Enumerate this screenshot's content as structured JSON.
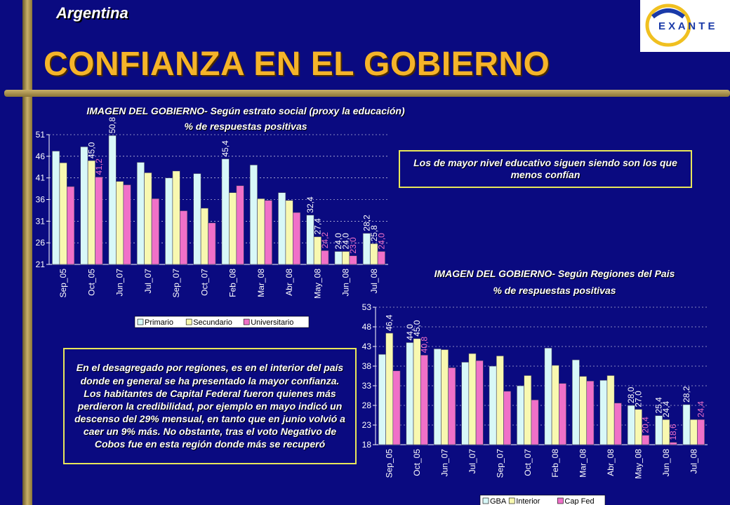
{
  "header": {
    "country": "Argentina",
    "title": "CONFIANZA EN EL GOBIERNO",
    "logo_text": "E X A N T E"
  },
  "colors": {
    "background": "#0a0a80",
    "title": "#f5b42a",
    "note_border": "#e8e65a",
    "series_1": "#d8f8f8",
    "series_2": "#f8f8b0",
    "series_3": "#f070c8"
  },
  "chart_data": [
    {
      "type": "bar",
      "title": "IMAGEN DEL GOBIERNO- Según estrato social (proxy la educación)",
      "subtitle": "% de respuestas positivas",
      "categories": [
        "Sep_05",
        "Oct_05",
        "Jun_07",
        "Jul_07",
        "Sep_07",
        "Oct_07",
        "Feb_08",
        "Mar_08",
        "Abr_08",
        "May_08",
        "Jun_08",
        "Jul_08"
      ],
      "series": [
        {
          "name": "Primario",
          "values": [
            47.2,
            48.2,
            50.8,
            44.6,
            41.0,
            42.0,
            45.4,
            44.0,
            37.6,
            32.4,
            24.0,
            28.2
          ]
        },
        {
          "name": "Secundario",
          "values": [
            44.5,
            45.0,
            40.2,
            42.2,
            42.6,
            34.0,
            37.6,
            36.2,
            35.8,
            27.4,
            24.0,
            25.8
          ]
        },
        {
          "name": "Universitario",
          "values": [
            39.0,
            41.2,
            39.4,
            36.2,
            33.4,
            30.6,
            39.2,
            35.8,
            33.0,
            24.2,
            23.0,
            24.0
          ]
        }
      ],
      "labels": [
        {
          "text": "50,8"
        },
        {
          "text": "45,0"
        },
        {
          "text": "41,2"
        },
        {
          "text": "45,4"
        },
        {
          "text": "32,4"
        },
        {
          "text": "27,4"
        },
        {
          "text": "24,2"
        },
        {
          "text": "24,0"
        },
        {
          "text": "24,0"
        },
        {
          "text": "23,0"
        },
        {
          "text": "28,2"
        },
        {
          "text": "25,8"
        },
        {
          "text": "24,0"
        }
      ],
      "ylim": [
        21,
        51
      ],
      "yticks": [
        21,
        26,
        31,
        36,
        41,
        46,
        51
      ],
      "legend": "bottom"
    },
    {
      "type": "bar",
      "title": "IMAGEN DEL GOBIERNO- Según Regiones  del Pais",
      "subtitle": "% de respuestas positivas",
      "categories": [
        "Sep_05",
        "Oct_05",
        "Jun_07",
        "Jul_07",
        "Sep_07",
        "Oct_07",
        "Feb_08",
        "Mar_08",
        "Abr_08",
        "May_08",
        "Jun_08",
        "Jul_08"
      ],
      "series": [
        {
          "name": "GBA",
          "values": [
            41.0,
            44.0,
            42.4,
            39.0,
            38.0,
            33.0,
            42.6,
            39.6,
            34.4,
            28.0,
            25.4,
            28.2
          ]
        },
        {
          "name": "Interior",
          "values": [
            46.4,
            45.0,
            42.2,
            41.2,
            40.6,
            35.6,
            38.2,
            35.4,
            35.6,
            27.0,
            24.4,
            24.4
          ]
        },
        {
          "name": "Cap Fed",
          "values": [
            36.8,
            40.8,
            37.6,
            39.4,
            31.6,
            29.4,
            33.6,
            34.2,
            28.6,
            20.4,
            18.6,
            24.4
          ]
        }
      ],
      "labels": [
        {
          "text": "46,4"
        },
        {
          "text": "44,0"
        },
        {
          "text": "45,0"
        },
        {
          "text": "40,8"
        },
        {
          "text": "28,0"
        },
        {
          "text": "27,0"
        },
        {
          "text": "20,4"
        },
        {
          "text": "25,4"
        },
        {
          "text": "24,4"
        },
        {
          "text": "18,6"
        },
        {
          "text": "28,2"
        },
        {
          "text": "24,4"
        }
      ],
      "ylim": [
        18,
        53
      ],
      "yticks": [
        18,
        23,
        28,
        33,
        38,
        43,
        48,
        53
      ],
      "legend": "bottom"
    }
  ],
  "notes": {
    "education": "Los de mayor nivel educativo siguen siendo son los que menos confían",
    "regions": "En el desagregado por regiones, es en el interior del país donde en general  se ha presentado la mayor confianza. Los habitantes de Capital Federal fueron quienes más perdieron la credibilidad, por ejemplo en mayo indicó un descenso del 29% mensual, en tanto que en junio volvió a caer un 9% más. No obstante, tras el voto Negativo de Cobos fue en esta región donde más se recuperó"
  }
}
